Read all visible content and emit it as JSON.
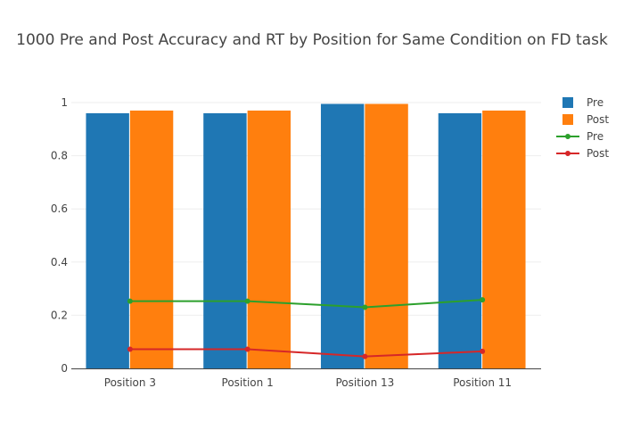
{
  "chart_data": {
    "type": "bar",
    "title": "1000 Pre and Post Accuracy and RT by Position for Same Condition on FD task",
    "xlabel": "",
    "ylabel": "",
    "categories": [
      "Position 3",
      "Position 1",
      "Position 13",
      "Position 11"
    ],
    "ylim": [
      0,
      1
    ],
    "yticks": [
      0,
      0.2,
      0.4,
      0.6,
      0.8,
      1
    ],
    "grid": true,
    "legend_position": "top-right",
    "bar_series": [
      {
        "name": "Pre",
        "color": "#1f77b4",
        "values": [
          0.96,
          0.96,
          0.995,
          0.96
        ]
      },
      {
        "name": "Post",
        "color": "#ff7f0e",
        "values": [
          0.97,
          0.97,
          0.995,
          0.97
        ]
      }
    ],
    "line_series": [
      {
        "name": "Pre",
        "color": "#2ca02c",
        "values": [
          0.253,
          0.253,
          0.23,
          0.258
        ]
      },
      {
        "name": "Post",
        "color": "#d62728",
        "values": [
          0.072,
          0.072,
          0.045,
          0.064
        ]
      }
    ]
  }
}
